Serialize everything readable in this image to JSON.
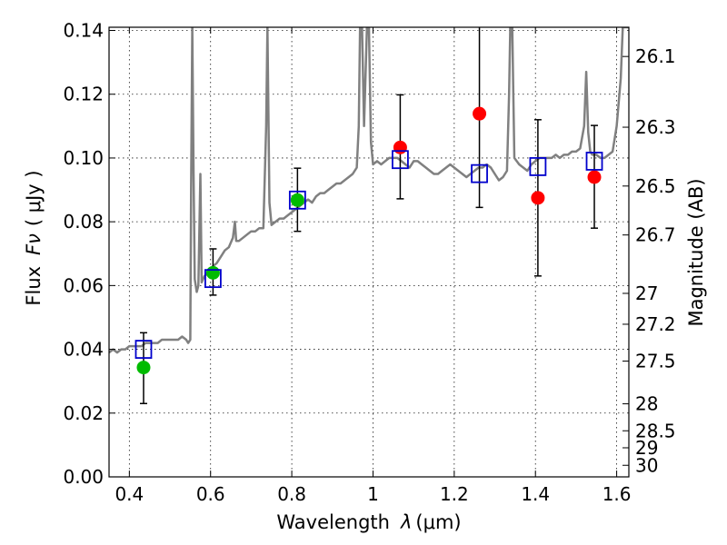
{
  "chart_data": {
    "type": "scatter",
    "xlabel_text": "Wavelength",
    "xlabel_symbol": "λ",
    "xlabel_unit": "(μm)",
    "ylabel_text": "Flux",
    "ylabel_symbol": "Fν",
    "ylabel_unit": "( μJy )",
    "y2label": "Magnitude (AB)",
    "xlim": [
      0.35,
      1.63
    ],
    "ylim": [
      0.0,
      0.141
    ],
    "grid": true,
    "x_ticks": [
      {
        "value": 0.4,
        "label": "0.4"
      },
      {
        "value": 0.6,
        "label": "0.6"
      },
      {
        "value": 0.8,
        "label": "0.8"
      },
      {
        "value": 1.0,
        "label": "1"
      },
      {
        "value": 1.2,
        "label": "1.2"
      },
      {
        "value": 1.4,
        "label": "1.4"
      },
      {
        "value": 1.6,
        "label": "1.6"
      }
    ],
    "y_ticks": [
      {
        "value": 0.0,
        "label": "0.00"
      },
      {
        "value": 0.02,
        "label": "0.02"
      },
      {
        "value": 0.04,
        "label": "0.04"
      },
      {
        "value": 0.06,
        "label": "0.06"
      },
      {
        "value": 0.08,
        "label": "0.08"
      },
      {
        "value": 0.1,
        "label": "0.10"
      },
      {
        "value": 0.12,
        "label": "0.12"
      },
      {
        "value": 0.14,
        "label": "0.14"
      }
    ],
    "y2_ticks": [
      {
        "value": 26.1,
        "label": "26.1"
      },
      {
        "value": 26.3,
        "label": "26.3"
      },
      {
        "value": 26.5,
        "label": "26.5"
      },
      {
        "value": 26.7,
        "label": "26.7"
      },
      {
        "value": 27.0,
        "label": "27"
      },
      {
        "value": 27.2,
        "label": "27.2"
      },
      {
        "value": 27.5,
        "label": "27.5"
      },
      {
        "value": 28.0,
        "label": "28"
      },
      {
        "value": 28.5,
        "label": "28.5"
      },
      {
        "value": 29.0,
        "label": "29"
      },
      {
        "value": 30.0,
        "label": "30"
      }
    ],
    "series": [
      {
        "marker": "circle",
        "color": "#00bb00",
        "points": [
          {
            "x": 0.435,
            "y": 0.0343,
            "err_low": 0.023,
            "err_high": 0.0452
          },
          {
            "x": 0.606,
            "y": 0.064,
            "err_low": 0.057,
            "err_high": 0.0715
          },
          {
            "x": 0.814,
            "y": 0.0868,
            "err_low": 0.077,
            "err_high": 0.0968
          }
        ]
      },
      {
        "marker": "circle",
        "color": "#ff0000",
        "points": [
          {
            "x": 1.067,
            "y": 0.1033,
            "err_low": 0.0872,
            "err_high": 0.1198
          },
          {
            "x": 1.262,
            "y": 0.1139,
            "err_low": 0.0845,
            "err_high": 0.1432
          },
          {
            "x": 1.406,
            "y": 0.0875,
            "err_low": 0.063,
            "err_high": 0.112
          },
          {
            "x": 1.545,
            "y": 0.094,
            "err_low": 0.078,
            "err_high": 0.1102
          }
        ]
      },
      {
        "marker": "square",
        "color": "#0000cc",
        "points": [
          {
            "x": 0.435,
            "y": 0.04
          },
          {
            "x": 0.606,
            "y": 0.0622
          },
          {
            "x": 0.814,
            "y": 0.0868
          },
          {
            "x": 1.067,
            "y": 0.0995
          },
          {
            "x": 1.262,
            "y": 0.0951
          },
          {
            "x": 1.406,
            "y": 0.0973
          },
          {
            "x": 1.545,
            "y": 0.099
          }
        ]
      }
    ],
    "model_spectrum": {
      "color": "#808080",
      "points": [
        [
          0.35,
          0.039
        ],
        [
          0.36,
          0.04
        ],
        [
          0.37,
          0.039
        ],
        [
          0.38,
          0.04
        ],
        [
          0.39,
          0.04
        ],
        [
          0.4,
          0.041
        ],
        [
          0.41,
          0.041
        ],
        [
          0.42,
          0.041
        ],
        [
          0.43,
          0.041
        ],
        [
          0.44,
          0.042
        ],
        [
          0.45,
          0.042
        ],
        [
          0.46,
          0.042
        ],
        [
          0.47,
          0.042
        ],
        [
          0.48,
          0.043
        ],
        [
          0.49,
          0.043
        ],
        [
          0.5,
          0.043
        ],
        [
          0.51,
          0.043
        ],
        [
          0.52,
          0.043
        ],
        [
          0.53,
          0.044
        ],
        [
          0.54,
          0.043
        ],
        [
          0.545,
          0.042
        ],
        [
          0.55,
          0.043
        ],
        [
          0.552,
          0.09
        ],
        [
          0.555,
          0.141
        ],
        [
          0.558,
          0.095
        ],
        [
          0.561,
          0.062
        ],
        [
          0.566,
          0.058
        ],
        [
          0.57,
          0.06
        ],
        [
          0.575,
          0.095
        ],
        [
          0.578,
          0.061
        ],
        [
          0.585,
          0.063
        ],
        [
          0.595,
          0.064
        ],
        [
          0.605,
          0.066
        ],
        [
          0.615,
          0.067
        ],
        [
          0.625,
          0.069
        ],
        [
          0.635,
          0.071
        ],
        [
          0.645,
          0.072
        ],
        [
          0.655,
          0.075
        ],
        [
          0.66,
          0.08
        ],
        [
          0.663,
          0.074
        ],
        [
          0.67,
          0.074
        ],
        [
          0.68,
          0.075
        ],
        [
          0.69,
          0.076
        ],
        [
          0.7,
          0.077
        ],
        [
          0.71,
          0.077
        ],
        [
          0.72,
          0.078
        ],
        [
          0.73,
          0.078
        ],
        [
          0.737,
          0.11
        ],
        [
          0.74,
          0.141
        ],
        [
          0.745,
          0.086
        ],
        [
          0.75,
          0.079
        ],
        [
          0.76,
          0.08
        ],
        [
          0.77,
          0.081
        ],
        [
          0.78,
          0.081
        ],
        [
          0.79,
          0.082
        ],
        [
          0.8,
          0.083
        ],
        [
          0.81,
          0.084
        ],
        [
          0.82,
          0.085
        ],
        [
          0.83,
          0.086
        ],
        [
          0.84,
          0.087
        ],
        [
          0.85,
          0.086
        ],
        [
          0.86,
          0.088
        ],
        [
          0.87,
          0.089
        ],
        [
          0.88,
          0.089
        ],
        [
          0.89,
          0.09
        ],
        [
          0.9,
          0.091
        ],
        [
          0.91,
          0.092
        ],
        [
          0.92,
          0.092
        ],
        [
          0.93,
          0.093
        ],
        [
          0.94,
          0.094
        ],
        [
          0.95,
          0.095
        ],
        [
          0.96,
          0.097
        ],
        [
          0.965,
          0.11
        ],
        [
          0.968,
          0.141
        ],
        [
          0.973,
          0.141
        ],
        [
          0.978,
          0.11
        ],
        [
          0.985,
          0.141
        ],
        [
          0.99,
          0.141
        ],
        [
          0.995,
          0.105
        ],
        [
          1.0,
          0.098
        ],
        [
          1.01,
          0.099
        ],
        [
          1.02,
          0.098
        ],
        [
          1.03,
          0.099
        ],
        [
          1.04,
          0.1
        ],
        [
          1.05,
          0.1
        ],
        [
          1.06,
          0.1
        ],
        [
          1.07,
          0.099
        ],
        [
          1.08,
          0.098
        ],
        [
          1.09,
          0.097
        ],
        [
          1.1,
          0.099
        ],
        [
          1.11,
          0.099
        ],
        [
          1.12,
          0.098
        ],
        [
          1.13,
          0.097
        ],
        [
          1.14,
          0.096
        ],
        [
          1.15,
          0.095
        ],
        [
          1.16,
          0.095
        ],
        [
          1.17,
          0.096
        ],
        [
          1.18,
          0.097
        ],
        [
          1.19,
          0.098
        ],
        [
          1.2,
          0.097
        ],
        [
          1.21,
          0.096
        ],
        [
          1.22,
          0.095
        ],
        [
          1.23,
          0.094
        ],
        [
          1.24,
          0.095
        ],
        [
          1.25,
          0.096
        ],
        [
          1.26,
          0.097
        ],
        [
          1.27,
          0.097
        ],
        [
          1.28,
          0.098
        ],
        [
          1.29,
          0.097
        ],
        [
          1.3,
          0.095
        ],
        [
          1.31,
          0.093
        ],
        [
          1.32,
          0.094
        ],
        [
          1.33,
          0.096
        ],
        [
          1.335,
          0.12
        ],
        [
          1.338,
          0.141
        ],
        [
          1.343,
          0.141
        ],
        [
          1.348,
          0.1
        ],
        [
          1.36,
          0.098
        ],
        [
          1.37,
          0.097
        ],
        [
          1.38,
          0.096
        ],
        [
          1.39,
          0.098
        ],
        [
          1.4,
          0.099
        ],
        [
          1.41,
          0.1
        ],
        [
          1.42,
          0.1
        ],
        [
          1.43,
          0.1
        ],
        [
          1.44,
          0.1
        ],
        [
          1.45,
          0.101
        ],
        [
          1.46,
          0.1
        ],
        [
          1.47,
          0.101
        ],
        [
          1.48,
          0.101
        ],
        [
          1.49,
          0.102
        ],
        [
          1.5,
          0.102
        ],
        [
          1.51,
          0.103
        ],
        [
          1.52,
          0.11
        ],
        [
          1.525,
          0.127
        ],
        [
          1.53,
          0.108
        ],
        [
          1.535,
          0.102
        ],
        [
          1.54,
          0.101
        ],
        [
          1.55,
          0.101
        ],
        [
          1.56,
          0.1
        ],
        [
          1.57,
          0.1
        ],
        [
          1.58,
          0.101
        ],
        [
          1.59,
          0.102
        ],
        [
          1.6,
          0.11
        ],
        [
          1.61,
          0.125
        ],
        [
          1.615,
          0.141
        ],
        [
          1.62,
          0.141
        ],
        [
          1.63,
          0.141
        ]
      ]
    }
  }
}
